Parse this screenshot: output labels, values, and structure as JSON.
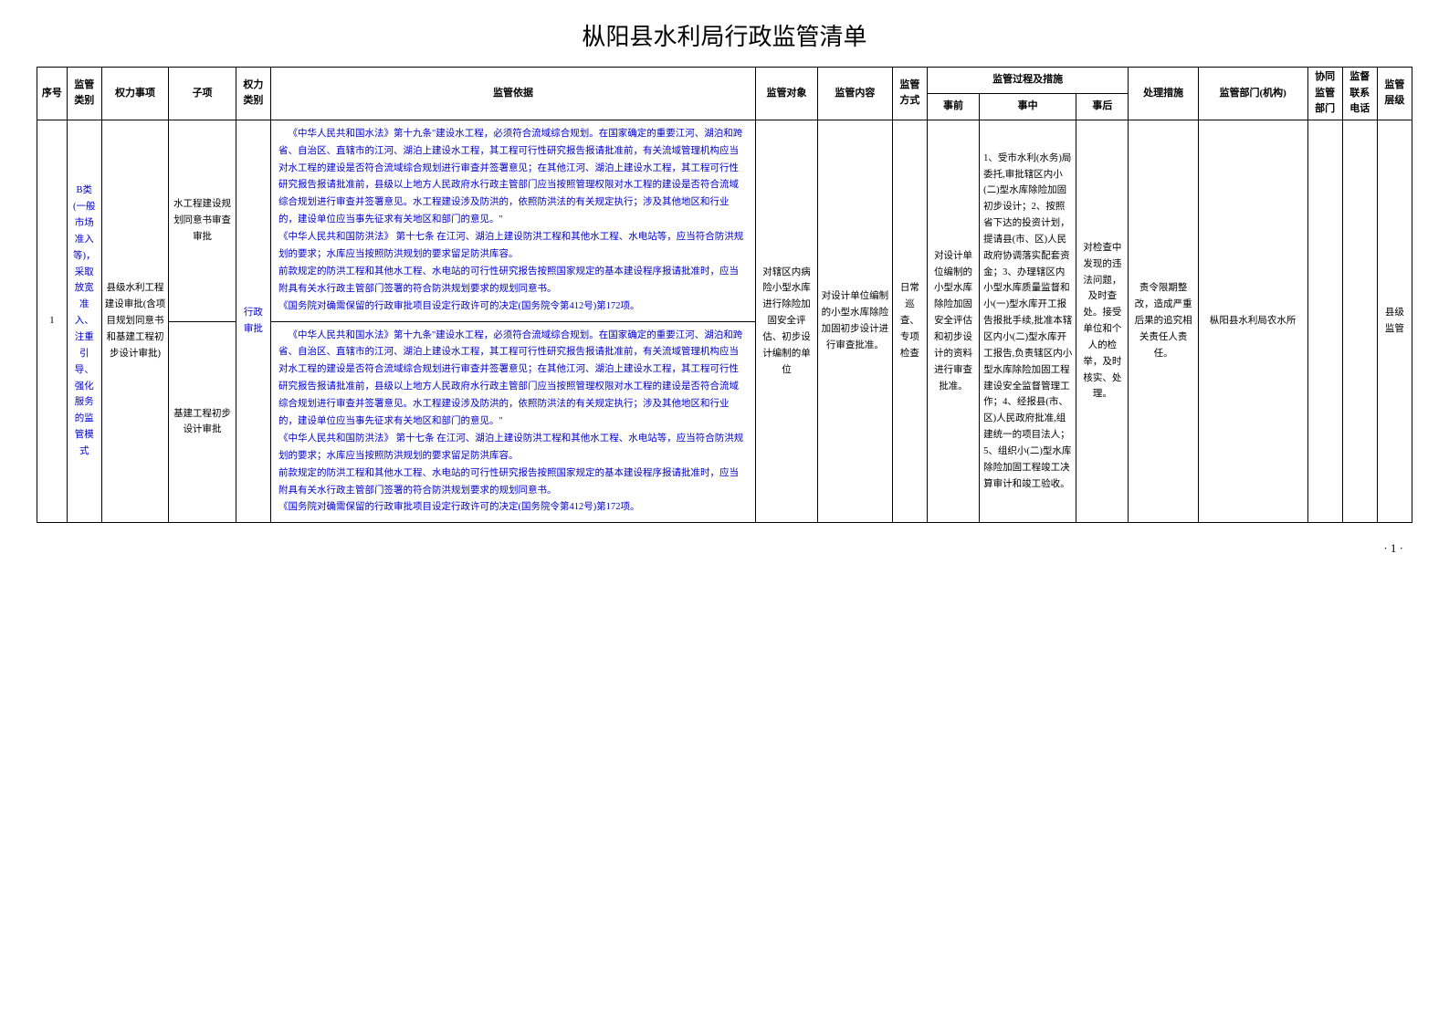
{
  "title": "枞阳县水利局行政监管清单",
  "page_number": "· 1 ·",
  "columns": {
    "seq": "序号",
    "category": "监管类别",
    "power_item": "权力事项",
    "sub_item": "子项",
    "power_type": "权力类别",
    "basis": "监管依据",
    "target": "监管对象",
    "content": "监管内容",
    "method": "监管方式",
    "process": "监管过程及措施",
    "before": "事前",
    "during": "事中",
    "after": "事后",
    "measure": "处理措施",
    "dept": "监管部门(机构)",
    "coop_dept": "协同监管部门",
    "contact": "监督联系电话",
    "level": "监管层级"
  },
  "row1": {
    "seq": "1",
    "category": "B类(一般市场准入等)，采取放宽准入、注重引导、强化服务的监管模式",
    "power_item": "县级水利工程建设审批(含项目规划同意书和基建工程初步设计审批)",
    "sub_item_top": "水工程建设规划同意书审查审批",
    "sub_item_bottom": "基建工程初步设计审批",
    "power_type": "行政审批",
    "basis_top": "《中华人民共和国水法》第十九条\"建设水工程，必须符合流域综合规划。在国家确定的重要江河、湖泊和跨省、自治区、直辖市的江河、湖泊上建设水工程，其工程可行性研究报告报请批准前，有关流域管理机构应当对水工程的建设是否符合流域综合规划进行审查并签署意见；在其他江河、湖泊上建设水工程，其工程可行性研究报告报请批准前，县级以上地方人民政府水行政主管部门应当按照管理权限对水工程的建设是否符合流域综合规划进行审查并签署意见。水工程建设涉及防洪的，依照防洪法的有关规定执行；涉及其他地区和行业的，建设单位应当事先征求有关地区和部门的意见。\"\n《中华人民共和国防洪法》 第十七条 在江河、湖泊上建设防洪工程和其他水工程、水电站等，应当符合防洪规划的要求；水库应当按照防洪规划的要求留足防洪库容。\n前款规定的防洪工程和其他水工程、水电站的可行性研究报告按照国家规定的基本建设程序报请批准时，应当附具有关水行政主管部门签署的符合防洪规划要求的规划同意书。\n《国务院对确需保留的行政审批项目设定行政许可的决定(国务院令第412号)第172项。",
    "basis_bottom": "《中华人民共和国水法》第十九条\"建设水工程，必须符合流域综合规划。在国家确定的重要江河、湖泊和跨省、自治区、直辖市的江河、湖泊上建设水工程，其工程可行性研究报告报请批准前，有关流域管理机构应当对水工程的建设是否符合流域综合规划进行审查并签署意见；在其他江河、湖泊上建设水工程，其工程可行性研究报告报请批准前，县级以上地方人民政府水行政主管部门应当按照管理权限对水工程的建设是否符合流域综合规划进行审查并签署意见。水工程建设涉及防洪的，依照防洪法的有关规定执行；涉及其他地区和行业的，建设单位应当事先征求有关地区和部门的意见。\"\n《中华人民共和国防洪法》 第十七条 在江河、湖泊上建设防洪工程和其他水工程、水电站等，应当符合防洪规划的要求；水库应当按照防洪规划的要求留足防洪库容。\n前款规定的防洪工程和其他水工程、水电站的可行性研究报告按照国家规定的基本建设程序报请批准时，应当附具有关水行政主管部门签署的符合防洪规划要求的规划同意书。\n《国务院对确需保留的行政审批项目设定行政许可的决定(国务院令第412号)第172项。",
    "target": "对辖区内病险小型水库进行除险加固安全评估、初步设计编制的单位",
    "content": "对设计单位编制的小型水库除险加固初步设计进行审查批准。",
    "method": "日常巡查、专项检查",
    "before": "对设计单位编制的小型水库除险加固安全评估和初步设计的资料进行审查批准。",
    "during": "1、受市水利(水务)局委托,审批辖区内小(二)型水库除险加固初步设计；2、按照省下达的投资计划，提请县(市、区)人民政府协调落实配套资金；3、办理辖区内小型水库质量监督和小(一)型水库开工报告报批手续,批准本辖区内小(二)型水库开工报告,负责辖区内小型水库除险加固工程建设安全监督管理工作；4、经报县(市、区)人民政府批准,组建统一的项目法人；5、组织小(二)型水库除险加固工程竣工决算审计和竣工验收。",
    "after": "对检查中发现的违法问题，及时查处。接受单位和个人的检举，及时核实、处理。",
    "measure": "责令限期整改，造成严重后果的追究相关责任人责任。",
    "dept": "枞阳县水利局农水所",
    "coop_dept": "",
    "contact": "",
    "level": "县级监管"
  }
}
